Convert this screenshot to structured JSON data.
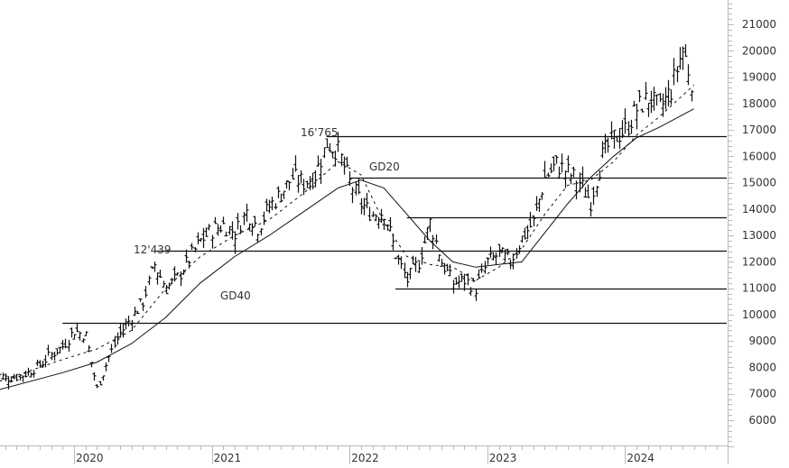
{
  "chart_data": {
    "type": "line",
    "subtype": "ohlc-bar-weekly",
    "title": "",
    "xlabel": "",
    "ylabel": "",
    "ylim": [
      5000,
      21800
    ],
    "grid": false,
    "legend": null,
    "y_ticks": [
      6000,
      7000,
      8000,
      9000,
      10000,
      11000,
      12000,
      13000,
      14000,
      15000,
      16000,
      17000,
      18000,
      19000,
      20000,
      21000
    ],
    "y_tick_labels": [
      "6000",
      "7000",
      "8000",
      "9000",
      "10000",
      "11000",
      "12000",
      "13000",
      "14000",
      "15000",
      "16000",
      "17000",
      "18000",
      "19000",
      "20000",
      "21000"
    ],
    "x_tick_labels": [
      "2020",
      "2021",
      "2022",
      "2023",
      "2024"
    ],
    "x_range": [
      "2019-06",
      "2024-08"
    ],
    "annotations": [
      {
        "text": "16'765",
        "value": 16765,
        "type": "high-label"
      },
      {
        "text": "12'439",
        "value": 12439,
        "type": "high-label"
      },
      {
        "text": "GD20",
        "type": "series-label",
        "series": "GD20"
      },
      {
        "text": "GD40",
        "type": "series-label",
        "series": "GD40"
      }
    ],
    "horizontal_lines": [
      {
        "value": 16765,
        "from": "2021-11",
        "to": "2024-08"
      },
      {
        "value": 15200,
        "from": "2022-01",
        "to": "2024-08"
      },
      {
        "value": 13700,
        "from": "2022-06",
        "to": "2024-08"
      },
      {
        "value": 12439,
        "from": "2020-08",
        "to": "2024-08"
      },
      {
        "value": 11000,
        "from": "2022-05",
        "to": "2024-08"
      },
      {
        "value": 9700,
        "from": "2019-12",
        "to": "2024-08"
      }
    ],
    "series": [
      {
        "name": "Price (weekly close, approx.)",
        "style": "ohlc-bars",
        "x": [
          "2019-06",
          "2019-07",
          "2019-08",
          "2019-09",
          "2019-10",
          "2019-11",
          "2019-12",
          "2020-01",
          "2020-02",
          "2020-03",
          "2020-04",
          "2020-05",
          "2020-06",
          "2020-07",
          "2020-08",
          "2020-09",
          "2020-10",
          "2020-11",
          "2020-12",
          "2021-01",
          "2021-02",
          "2021-03",
          "2021-04",
          "2021-05",
          "2021-06",
          "2021-07",
          "2021-08",
          "2021-09",
          "2021-10",
          "2021-11",
          "2021-12",
          "2022-01",
          "2022-02",
          "2022-03",
          "2022-04",
          "2022-05",
          "2022-06",
          "2022-07",
          "2022-08",
          "2022-09",
          "2022-10",
          "2022-11",
          "2022-12",
          "2023-01",
          "2023-02",
          "2023-03",
          "2023-04",
          "2023-05",
          "2023-06",
          "2023-07",
          "2023-08",
          "2023-09",
          "2023-10",
          "2023-11",
          "2023-12",
          "2024-01",
          "2024-02",
          "2024-03",
          "2024-04",
          "2024-05",
          "2024-06",
          "2024-07"
        ],
        "values": [
          7800,
          7600,
          7650,
          7800,
          8100,
          8500,
          8800,
          9400,
          9200,
          7200,
          8400,
          9300,
          9900,
          10500,
          11900,
          11000,
          11400,
          12100,
          12800,
          13200,
          13400,
          13100,
          13900,
          13300,
          14100,
          14600,
          15200,
          15000,
          15300,
          16500,
          16200,
          15000,
          14200,
          13800,
          13900,
          12300,
          11300,
          12000,
          13500,
          12000,
          11200,
          11300,
          11000,
          12000,
          12300,
          12000,
          12900,
          13500,
          15200,
          15700,
          15400,
          15000,
          14300,
          16000,
          16700,
          17000,
          17800,
          18200,
          17800,
          18500,
          20100,
          18500
        ]
      },
      {
        "name": "GD20",
        "style": "dashed",
        "x": [
          "2019-06",
          "2019-12",
          "2020-03",
          "2020-06",
          "2020-09",
          "2020-12",
          "2021-03",
          "2021-06",
          "2021-09",
          "2021-12",
          "2022-02",
          "2022-04",
          "2022-06",
          "2022-08",
          "2022-10",
          "2022-12",
          "2023-02",
          "2023-04",
          "2023-06",
          "2023-08",
          "2023-10",
          "2023-12",
          "2024-02",
          "2024-04",
          "2024-07"
        ],
        "values": [
          7400,
          8300,
          8700,
          9400,
          11000,
          12200,
          13000,
          13600,
          14600,
          15800,
          15300,
          13500,
          12200,
          11900,
          11800,
          11300,
          11800,
          12500,
          13800,
          14900,
          15100,
          15800,
          16800,
          17500,
          18700
        ]
      },
      {
        "name": "GD40",
        "style": "solid",
        "x": [
          "2019-06",
          "2019-12",
          "2020-03",
          "2020-06",
          "2020-09",
          "2020-12",
          "2021-03",
          "2021-06",
          "2021-09",
          "2021-12",
          "2022-02",
          "2022-04",
          "2022-06",
          "2022-08",
          "2022-10",
          "2022-12",
          "2023-02",
          "2023-04",
          "2023-06",
          "2023-08",
          "2023-10",
          "2023-12",
          "2024-02",
          "2024-04",
          "2024-07"
        ],
        "values": [
          7100,
          7800,
          8200,
          8900,
          9900,
          11200,
          12200,
          13000,
          13900,
          14800,
          15100,
          14800,
          13800,
          12800,
          12000,
          11800,
          11900,
          12000,
          13100,
          14200,
          15200,
          16000,
          16700,
          17100,
          17800
        ]
      }
    ]
  }
}
